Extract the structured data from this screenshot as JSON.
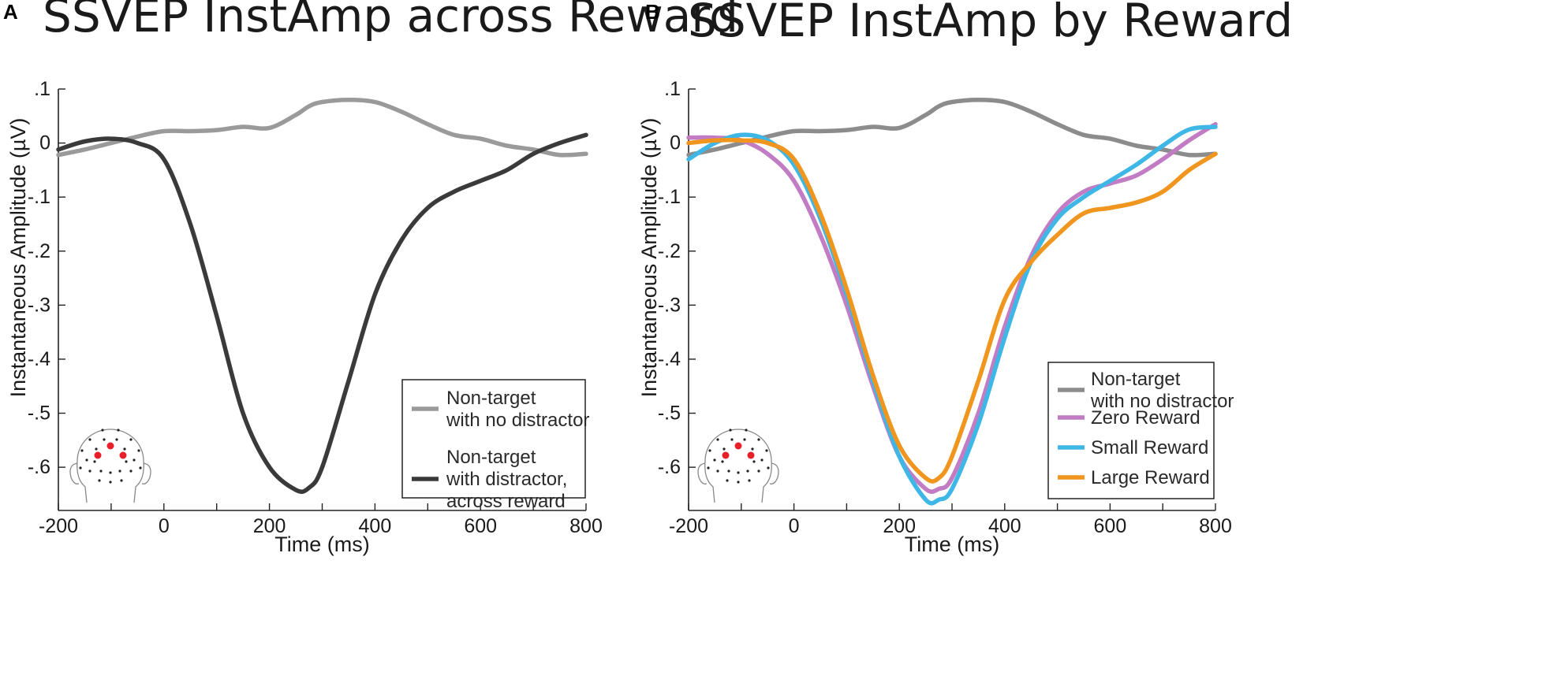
{
  "chart_data": [
    {
      "panel": "A",
      "type": "line",
      "title": "SSVEP InstAmp across Reward",
      "xlabel": "Time (ms)",
      "ylabel": "Instantaneous Amplitude (µV)",
      "xlim": [
        -200,
        800
      ],
      "ylim": [
        -0.68,
        0.1
      ],
      "xticks": [
        -200,
        0,
        200,
        400,
        600,
        800
      ],
      "xtick_labels": [
        "-200",
        "0",
        "200",
        "400",
        "600",
        "800"
      ],
      "yticks": [
        0.1,
        0,
        -0.1,
        -0.2,
        -0.3,
        -0.4,
        -0.5,
        -0.6
      ],
      "ytick_labels": [
        ".1",
        "0",
        "-.1",
        "-.2",
        "-.3",
        "-.4",
        "-.5",
        "-.6"
      ],
      "legend_position": "bottom-right",
      "x": [
        -200,
        -150,
        -100,
        -50,
        0,
        50,
        100,
        150,
        200,
        250,
        275,
        300,
        350,
        400,
        450,
        500,
        550,
        600,
        650,
        700,
        750,
        800
      ],
      "series": [
        {
          "name": "Non-target with no distractor",
          "legend_lines": [
            "Non-target",
            "with no distractor"
          ],
          "color": "#9a9a9a",
          "values": [
            -0.022,
            -0.012,
            0.0,
            0.012,
            0.022,
            0.022,
            0.024,
            0.03,
            0.028,
            0.052,
            0.068,
            0.076,
            0.08,
            0.076,
            0.058,
            0.035,
            0.015,
            0.008,
            -0.005,
            -0.012,
            -0.022,
            -0.02
          ]
        },
        {
          "name": "Non-target with distractor, across reward",
          "legend_lines": [
            "Non-target",
            "with distractor,",
            "across reward"
          ],
          "color": "#3a3a3a",
          "values": [
            -0.012,
            0.003,
            0.008,
            0.0,
            -0.03,
            -0.15,
            -0.32,
            -0.5,
            -0.6,
            -0.642,
            -0.638,
            -0.6,
            -0.44,
            -0.28,
            -0.18,
            -0.12,
            -0.09,
            -0.07,
            -0.05,
            -0.02,
            0.0,
            0.015
          ]
        }
      ]
    },
    {
      "panel": "B",
      "type": "line",
      "title": "SSVEP InstAmp by Reward",
      "xlabel": "Time (ms)",
      "ylabel": "Instantaneous Amplitude (µV)",
      "xlim": [
        -200,
        800
      ],
      "ylim": [
        -0.68,
        0.1
      ],
      "xticks": [
        -200,
        0,
        200,
        400,
        600,
        800
      ],
      "xtick_labels": [
        "-200",
        "0",
        "200",
        "400",
        "600",
        "800"
      ],
      "yticks": [
        0.1,
        0,
        -0.1,
        -0.2,
        -0.3,
        -0.4,
        -0.5,
        -0.6
      ],
      "ytick_labels": [
        ".1",
        "0",
        "-.1",
        "-.2",
        "-.3",
        "-.4",
        "-.5",
        "-.6"
      ],
      "legend_position": "bottom-right",
      "x": [
        -200,
        -150,
        -100,
        -50,
        0,
        50,
        100,
        150,
        200,
        250,
        275,
        300,
        350,
        400,
        450,
        500,
        550,
        600,
        650,
        700,
        750,
        800
      ],
      "series": [
        {
          "name": "Non-target with no distractor",
          "legend_lines": [
            "Non-target",
            "with no distractor"
          ],
          "color": "#8c8c8c",
          "values": [
            -0.022,
            -0.012,
            0.0,
            0.012,
            0.022,
            0.022,
            0.024,
            0.03,
            0.028,
            0.052,
            0.068,
            0.076,
            0.08,
            0.076,
            0.058,
            0.035,
            0.015,
            0.008,
            -0.005,
            -0.012,
            -0.022,
            -0.02
          ]
        },
        {
          "name": "Zero Reward",
          "legend_lines": [
            "Zero Reward"
          ],
          "color": "#c27cc4",
          "values": [
            0.01,
            0.01,
            0.005,
            -0.02,
            -0.07,
            -0.17,
            -0.3,
            -0.45,
            -0.58,
            -0.64,
            -0.64,
            -0.62,
            -0.5,
            -0.34,
            -0.21,
            -0.13,
            -0.09,
            -0.075,
            -0.06,
            -0.03,
            0.005,
            0.035
          ]
        },
        {
          "name": "Small Reward",
          "legend_lines": [
            "Small Reward"
          ],
          "color": "#3fb7e6",
          "values": [
            -0.03,
            0.0,
            0.015,
            0.005,
            -0.04,
            -0.14,
            -0.28,
            -0.44,
            -0.58,
            -0.66,
            -0.66,
            -0.64,
            -0.52,
            -0.36,
            -0.22,
            -0.14,
            -0.1,
            -0.07,
            -0.04,
            -0.005,
            0.025,
            0.03
          ]
        },
        {
          "name": "Large Reward",
          "legend_lines": [
            "Large Reward"
          ],
          "color": "#f0961e",
          "values": [
            0.0,
            0.005,
            0.005,
            0.0,
            -0.03,
            -0.13,
            -0.27,
            -0.43,
            -0.56,
            -0.62,
            -0.62,
            -0.58,
            -0.44,
            -0.29,
            -0.22,
            -0.17,
            -0.13,
            -0.12,
            -0.11,
            -0.09,
            -0.05,
            -0.02
          ]
        }
      ]
    }
  ]
}
